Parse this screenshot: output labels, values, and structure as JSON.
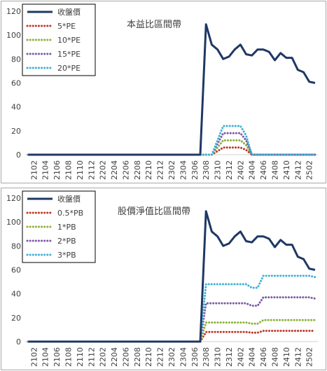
{
  "chart_data": [
    {
      "type": "line",
      "title": "本益比區間帶",
      "ylim": [
        0,
        120
      ],
      "yticks": [
        0,
        20,
        40,
        60,
        80,
        100,
        120
      ],
      "x_tick_labels": [
        "2102",
        "2104",
        "2106",
        "2108",
        "2110",
        "2112",
        "2202",
        "2204",
        "2206",
        "2208",
        "2210",
        "2212",
        "2302",
        "2304",
        "2306",
        "2308",
        "2310",
        "2312",
        "2402",
        "2404",
        "2406",
        "2408",
        "2410",
        "2412",
        "2502"
      ],
      "x_months": [
        "2101",
        "2102",
        "2103",
        "2104",
        "2105",
        "2106",
        "2107",
        "2108",
        "2109",
        "2110",
        "2111",
        "2112",
        "2201",
        "2202",
        "2203",
        "2204",
        "2205",
        "2206",
        "2207",
        "2208",
        "2209",
        "2210",
        "2211",
        "2212",
        "2301",
        "2302",
        "2303",
        "2304",
        "2305",
        "2306",
        "2307",
        "2308",
        "2309",
        "2310",
        "2311",
        "2312",
        "2401",
        "2402",
        "2403",
        "2404",
        "2405",
        "2406",
        "2407",
        "2408",
        "2409",
        "2410",
        "2411",
        "2412",
        "2501",
        "2502",
        "2503"
      ],
      "legend_placement": "top-left",
      "series": [
        {
          "name": "收盤價",
          "color": "#1f3864",
          "style": "solid",
          "values": [
            0,
            0,
            0,
            0,
            0,
            0,
            0,
            0,
            0,
            0,
            0,
            0,
            0,
            0,
            0,
            0,
            0,
            0,
            0,
            0,
            0,
            0,
            0,
            0,
            0,
            0,
            0,
            0,
            0,
            0,
            0,
            109,
            92,
            88,
            80,
            82,
            88,
            92,
            84,
            83,
            88,
            88,
            86,
            79,
            85,
            81,
            81,
            71,
            69,
            61,
            60
          ]
        },
        {
          "name": "5*PE",
          "color": "#c0392b",
          "style": "dotted",
          "values": [
            0,
            0,
            0,
            0,
            0,
            0,
            0,
            0,
            0,
            0,
            0,
            0,
            0,
            0,
            0,
            0,
            0,
            0,
            0,
            0,
            0,
            0,
            0,
            0,
            0,
            0,
            0,
            0,
            0,
            0,
            0,
            0,
            0,
            3,
            6,
            6,
            6,
            6,
            4,
            0,
            0,
            0,
            0,
            0,
            0,
            0,
            0,
            0,
            0,
            0,
            0
          ]
        },
        {
          "name": "10*PE",
          "color": "#8db33a",
          "style": "dotted",
          "values": [
            0,
            0,
            0,
            0,
            0,
            0,
            0,
            0,
            0,
            0,
            0,
            0,
            0,
            0,
            0,
            0,
            0,
            0,
            0,
            0,
            0,
            0,
            0,
            0,
            0,
            0,
            0,
            0,
            0,
            0,
            0,
            0,
            0,
            6,
            12,
            12,
            12,
            12,
            8,
            0,
            0,
            0,
            0,
            0,
            0,
            0,
            0,
            0,
            0,
            0,
            0
          ]
        },
        {
          "name": "15*PE",
          "color": "#7d5ba6",
          "style": "dotted",
          "values": [
            0,
            0,
            0,
            0,
            0,
            0,
            0,
            0,
            0,
            0,
            0,
            0,
            0,
            0,
            0,
            0,
            0,
            0,
            0,
            0,
            0,
            0,
            0,
            0,
            0,
            0,
            0,
            0,
            0,
            0,
            0,
            0,
            0,
            9,
            18,
            18,
            18,
            18,
            12,
            0,
            0,
            0,
            0,
            0,
            0,
            0,
            0,
            0,
            0,
            0,
            0
          ]
        },
        {
          "name": "20*PE",
          "color": "#3fb1d6",
          "style": "dotted",
          "values": [
            0,
            0,
            0,
            0,
            0,
            0,
            0,
            0,
            0,
            0,
            0,
            0,
            0,
            0,
            0,
            0,
            0,
            0,
            0,
            0,
            0,
            0,
            0,
            0,
            0,
            0,
            0,
            0,
            0,
            0,
            0,
            0,
            0,
            12,
            24,
            24,
            24,
            24,
            16,
            0,
            0,
            0,
            0,
            0,
            0,
            0,
            0,
            0,
            0,
            0,
            0
          ]
        }
      ]
    },
    {
      "type": "line",
      "title": "股價淨值比區間帶",
      "ylim": [
        0,
        120
      ],
      "yticks": [
        0,
        20,
        40,
        60,
        80,
        100,
        120
      ],
      "x_tick_labels": [
        "2102",
        "2104",
        "2106",
        "2108",
        "2110",
        "2112",
        "2202",
        "2204",
        "2206",
        "2208",
        "2210",
        "2212",
        "2302",
        "2304",
        "2306",
        "2308",
        "2310",
        "2312",
        "2402",
        "2404",
        "2406",
        "2408",
        "2410",
        "2412",
        "2502"
      ],
      "x_months": [
        "2101",
        "2102",
        "2103",
        "2104",
        "2105",
        "2106",
        "2107",
        "2108",
        "2109",
        "2110",
        "2111",
        "2112",
        "2201",
        "2202",
        "2203",
        "2204",
        "2205",
        "2206",
        "2207",
        "2208",
        "2209",
        "2210",
        "2211",
        "2212",
        "2301",
        "2302",
        "2303",
        "2304",
        "2305",
        "2306",
        "2307",
        "2308",
        "2309",
        "2310",
        "2311",
        "2312",
        "2401",
        "2402",
        "2403",
        "2404",
        "2405",
        "2406",
        "2407",
        "2408",
        "2409",
        "2410",
        "2411",
        "2412",
        "2501",
        "2502",
        "2503"
      ],
      "legend_placement": "top-left",
      "series": [
        {
          "name": "收盤價",
          "color": "#1f3864",
          "style": "solid",
          "values": [
            0,
            0,
            0,
            0,
            0,
            0,
            0,
            0,
            0,
            0,
            0,
            0,
            0,
            0,
            0,
            0,
            0,
            0,
            0,
            0,
            0,
            0,
            0,
            0,
            0,
            0,
            0,
            0,
            0,
            0,
            0,
            109,
            92,
            88,
            80,
            82,
            88,
            92,
            84,
            83,
            88,
            88,
            86,
            79,
            85,
            81,
            81,
            71,
            69,
            61,
            60
          ]
        },
        {
          "name": "0.5*PB",
          "color": "#c0392b",
          "style": "dotted",
          "values": [
            0,
            0,
            0,
            0,
            0,
            0,
            0,
            0,
            0,
            0,
            0,
            0,
            0,
            0,
            0,
            0,
            0,
            0,
            0,
            0,
            0,
            0,
            0,
            0,
            0,
            0,
            0,
            0,
            0,
            0,
            0,
            8,
            8,
            8,
            8,
            8,
            8,
            8,
            8,
            7.5,
            7.5,
            9,
            9,
            9,
            9,
            9,
            9,
            9,
            9,
            9,
            9
          ]
        },
        {
          "name": "1*PB",
          "color": "#8db33a",
          "style": "dotted",
          "values": [
            0,
            0,
            0,
            0,
            0,
            0,
            0,
            0,
            0,
            0,
            0,
            0,
            0,
            0,
            0,
            0,
            0,
            0,
            0,
            0,
            0,
            0,
            0,
            0,
            0,
            0,
            0,
            0,
            0,
            0,
            0,
            16,
            16,
            16,
            16,
            16,
            16,
            16,
            16,
            15,
            15,
            18,
            18,
            18,
            18,
            18,
            18,
            18,
            18,
            18,
            18
          ]
        },
        {
          "name": "2*PB",
          "color": "#7d5ba6",
          "style": "dotted",
          "values": [
            0,
            0,
            0,
            0,
            0,
            0,
            0,
            0,
            0,
            0,
            0,
            0,
            0,
            0,
            0,
            0,
            0,
            0,
            0,
            0,
            0,
            0,
            0,
            0,
            0,
            0,
            0,
            0,
            0,
            0,
            0,
            32,
            32,
            32,
            32,
            32,
            32,
            32,
            32,
            30,
            30,
            37,
            37,
            37,
            37,
            37,
            37,
            37,
            37,
            37,
            36
          ]
        },
        {
          "name": "3*PB",
          "color": "#3fb1d6",
          "style": "dotted",
          "values": [
            0,
            0,
            0,
            0,
            0,
            0,
            0,
            0,
            0,
            0,
            0,
            0,
            0,
            0,
            0,
            0,
            0,
            0,
            0,
            0,
            0,
            0,
            0,
            0,
            0,
            0,
            0,
            0,
            0,
            0,
            0,
            48,
            48,
            48,
            48,
            48,
            48,
            48,
            48,
            45,
            45,
            55,
            55,
            55,
            55,
            55,
            55,
            55,
            55,
            55,
            54
          ]
        }
      ]
    }
  ]
}
